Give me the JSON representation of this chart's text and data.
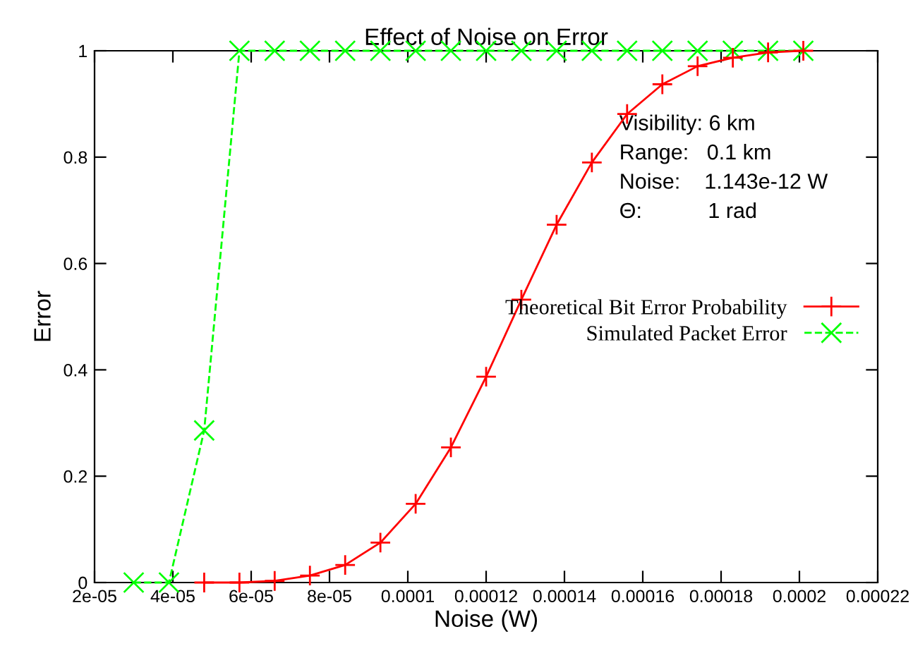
{
  "chart_data": {
    "type": "line",
    "title": "Effect of Noise on Error",
    "xlabel": "Noise (W)",
    "ylabel": "Error",
    "series": [
      {
        "name": "Theoretical Bit Error Probability",
        "color": "#ff0000",
        "marker": "plus",
        "line_style": "solid",
        "x": [
          4.8e-05,
          5.7e-05,
          6.6e-05,
          7.5e-05,
          8.4e-05,
          9.3e-05,
          0.000102,
          0.000111,
          0.00012,
          0.000129,
          0.000138,
          0.000147,
          0.000156,
          0.000165,
          0.000174,
          0.000183,
          0.000192,
          0.000201
        ],
        "values": [
          0,
          0,
          0.003,
          0.013,
          0.033,
          0.075,
          0.148,
          0.254,
          0.387,
          0.532,
          0.673,
          0.79,
          0.881,
          0.937,
          0.971,
          0.987,
          0.997,
          1.0
        ]
      },
      {
        "name": "Simulated Packet Error",
        "color": "#00ff00",
        "marker": "cross",
        "line_style": "dashed",
        "x": [
          3e-05,
          3.9e-05,
          4.8e-05,
          5.7e-05,
          6.6e-05,
          7.5e-05,
          8.4e-05,
          9.3e-05,
          0.000102,
          0.000111,
          0.00012,
          0.000129,
          0.000138,
          0.000147,
          0.000156,
          0.000165,
          0.000174,
          0.000183,
          0.000192,
          0.000201
        ],
        "values": [
          0,
          0,
          0.286,
          1,
          1,
          1,
          1,
          1,
          1,
          1,
          1,
          1,
          1,
          1,
          1,
          1,
          1,
          1,
          1,
          1
        ]
      }
    ],
    "xlim": [
      2e-05,
      0.00022
    ],
    "xticks": [
      {
        "value": 2e-05,
        "label": "2e-05"
      },
      {
        "value": 4e-05,
        "label": "4e-05"
      },
      {
        "value": 6e-05,
        "label": "6e-05"
      },
      {
        "value": 8e-05,
        "label": "8e-05"
      },
      0.0001,
      0.00012,
      0.00014,
      0.00016,
      0.00018,
      0.0002,
      0.00022
    ],
    "ylim": [
      0,
      1
    ],
    "yticks": [
      0,
      0.2,
      0.4,
      0.6,
      0.8,
      1
    ],
    "annotations": [
      "Visibility: 6 km",
      "Range:   0.1 km",
      "Noise:    1.143e-12 W",
      "Θ:           1 rad"
    ],
    "legend": "right",
    "grid": false
  }
}
